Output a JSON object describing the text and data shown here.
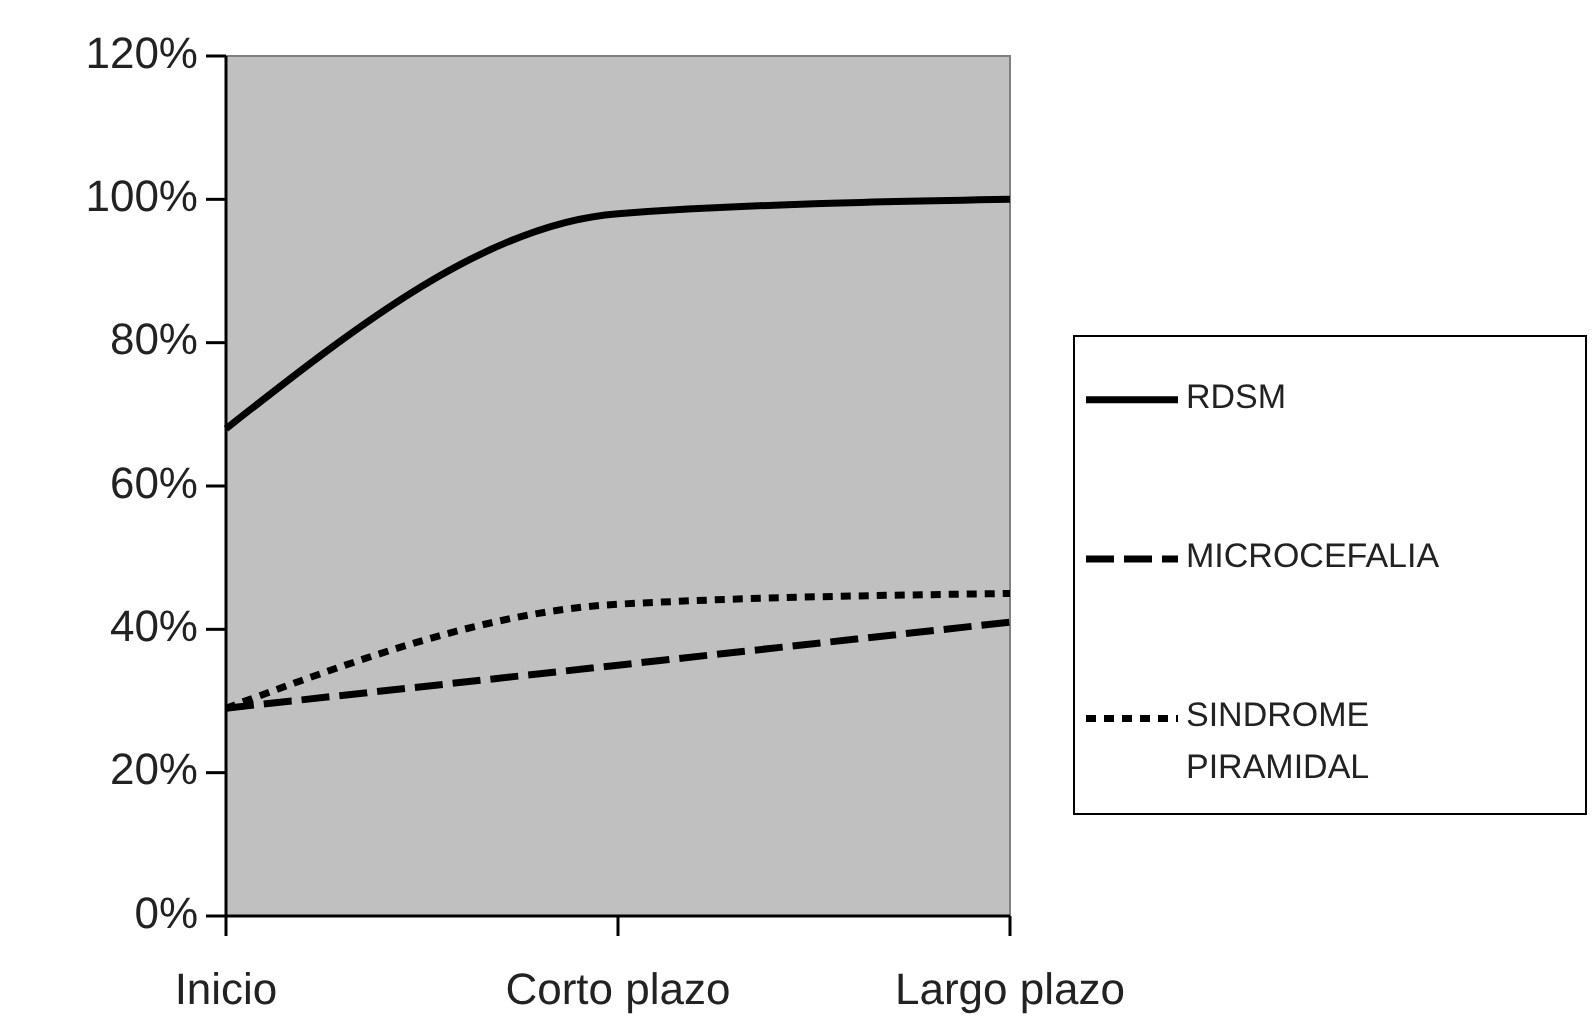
{
  "chart_data": {
    "type": "line",
    "categories": [
      "Inicio",
      "Corto plazo",
      "Largo plazo"
    ],
    "series": [
      {
        "name": "RDSM",
        "color": "#000000",
        "line_style": "solid",
        "values": [
          68,
          98,
          100
        ]
      },
      {
        "name": "MICROCEFALIA",
        "color": "#000000",
        "line_style": "dashed",
        "values": [
          29,
          35,
          41
        ]
      },
      {
        "name": "SINDROME PIRAMIDAL",
        "color": "#000000",
        "line_style": "dotted",
        "values": [
          29,
          43.5,
          45
        ]
      }
    ],
    "ylim": [
      0,
      120
    ],
    "yticks": [
      {
        "value": 0,
        "label": "0%"
      },
      {
        "value": 20,
        "label": "20%"
      },
      {
        "value": 40,
        "label": "40%"
      },
      {
        "value": 60,
        "label": "60%"
      },
      {
        "value": 80,
        "label": "80%"
      },
      {
        "value": 100,
        "label": "100%"
      },
      {
        "value": 120,
        "label": "120%"
      }
    ],
    "grid": false,
    "legend": "right",
    "marker": "none"
  }
}
